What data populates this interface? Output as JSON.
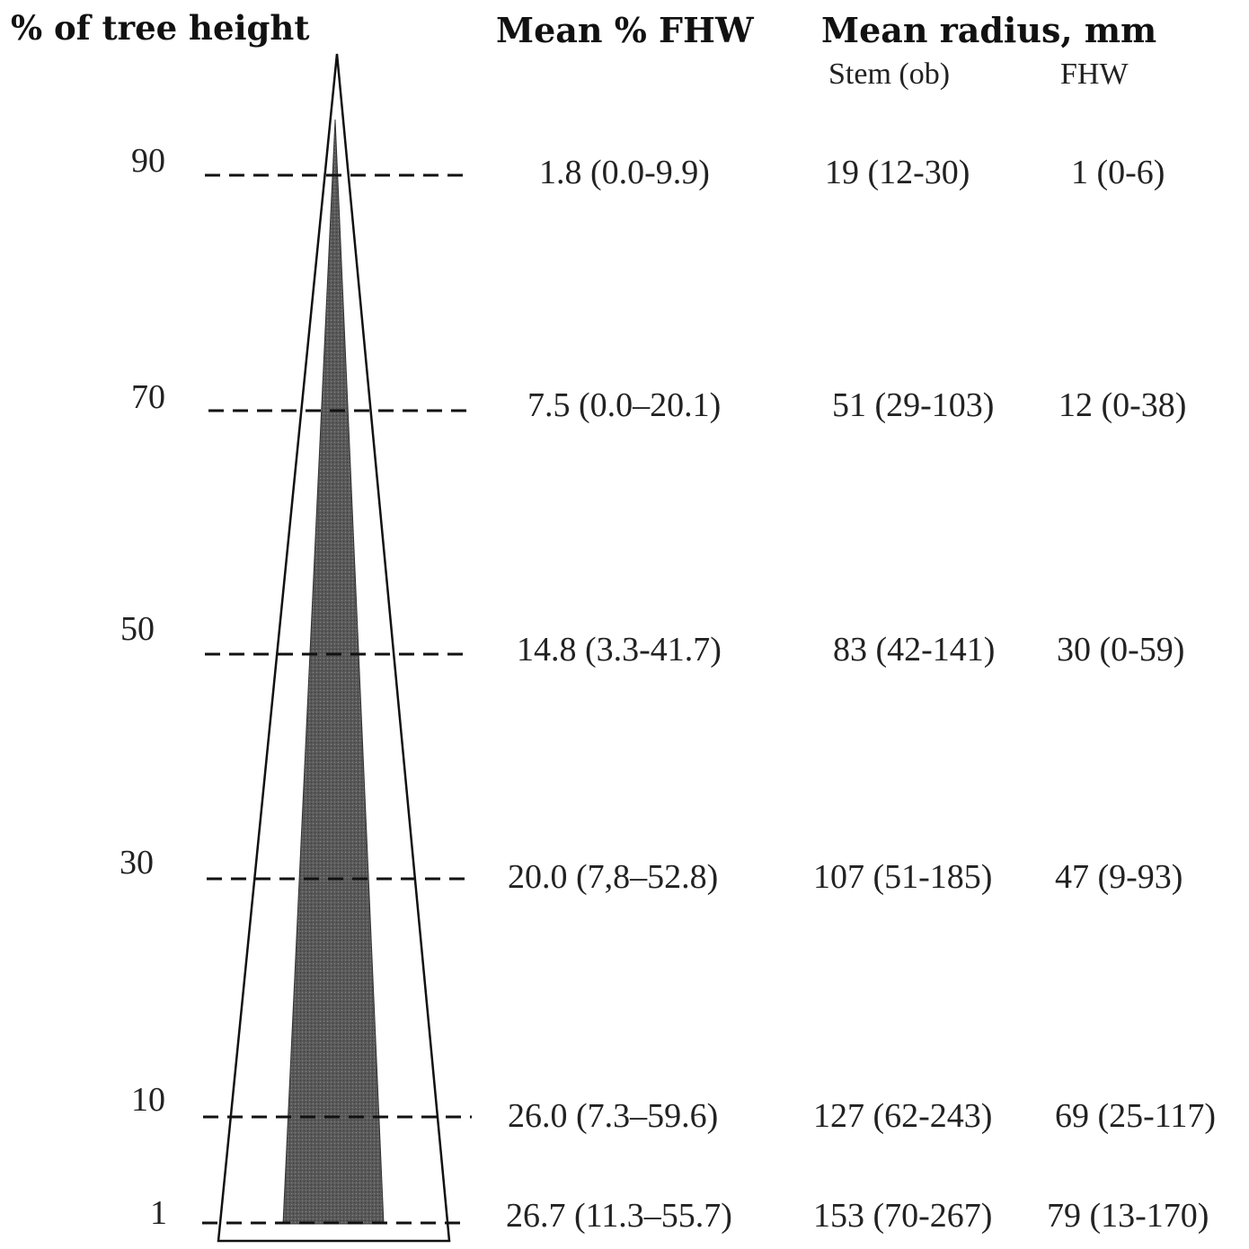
{
  "headers": {
    "height_axis": "% of tree height",
    "mean_fhw": "Mean % FHW",
    "mean_radius": "Mean radius, mm",
    "stem_ob": "Stem (ob)",
    "fhw": "FHW"
  },
  "rows": [
    {
      "level": "90",
      "fhw_pct": "1.8 (0.0-9.9)",
      "stem": "19 (12-30)",
      "fhw_r": "1 (0-6)"
    },
    {
      "level": "70",
      "fhw_pct": "7.5 (0.0–20.1)",
      "stem": "51 (29-103)",
      "fhw_r": "12 (0-38)"
    },
    {
      "level": "50",
      "fhw_pct": "14.8 (3.3-41.7)",
      "stem": "83 (42-141)",
      "fhw_r": "30 (0-59)"
    },
    {
      "level": "30",
      "fhw_pct": "20.0 (7,8–52.8)",
      "stem": "107 (51-185)",
      "fhw_r": "47 (9-93)"
    },
    {
      "level": "10",
      "fhw_pct": "26.0 (7.3–59.6)",
      "stem": "127 (62-243)",
      "fhw_r": "69 (25-117)"
    },
    {
      "level": "1",
      "fhw_pct": "26.7 (11.3–55.7)",
      "stem": "153 (70-267)",
      "fhw_r": "79 (13-170)"
    }
  ],
  "colors": {
    "line": "#111111",
    "heartwood": "#555555"
  }
}
